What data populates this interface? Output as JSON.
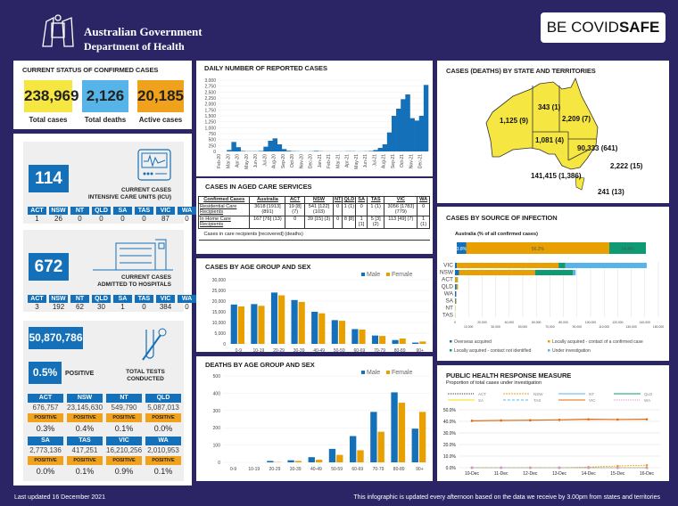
{
  "header": {
    "gov_line1": "Australian Government",
    "gov_line2": "Department of Health",
    "campaign_be": "BE ",
    "campaign_covid": "COVID",
    "campaign_safe": "SAFE"
  },
  "status": {
    "title": "CURRENT STATUS OF CONFIRMED CASES",
    "total_cases": "238,969",
    "total_cases_label": "Total cases",
    "total_deaths": "2,126",
    "total_deaths_label": "Total deaths",
    "active_cases": "20,185",
    "active_cases_label": "Active cases"
  },
  "icu": {
    "value": "114",
    "caption1": "CURRENT CASES",
    "caption2": "INTENSIVE CARE UNITS (ICU)",
    "states": [
      {
        "s": "ACT",
        "v": "1"
      },
      {
        "s": "NSW",
        "v": "26"
      },
      {
        "s": "NT",
        "v": "0"
      },
      {
        "s": "QLD",
        "v": "0"
      },
      {
        "s": "SA",
        "v": "0"
      },
      {
        "s": "TAS",
        "v": "0"
      },
      {
        "s": "VIC",
        "v": "87"
      },
      {
        "s": "WA",
        "v": "0"
      }
    ]
  },
  "hospital": {
    "value": "672",
    "caption1": "CURRENT CASES",
    "caption2": "ADMITTED TO HOSPITALS",
    "states": [
      {
        "s": "ACT",
        "v": "3"
      },
      {
        "s": "NSW",
        "v": "192"
      },
      {
        "s": "NT",
        "v": "62"
      },
      {
        "s": "QLD",
        "v": "30"
      },
      {
        "s": "SA",
        "v": "1"
      },
      {
        "s": "TAS",
        "v": "0"
      },
      {
        "s": "VIC",
        "v": "384"
      },
      {
        "s": "WA",
        "v": "0"
      }
    ]
  },
  "tests": {
    "value": "50,870,786",
    "positive_pct": "0.5%",
    "positive_label": "POSITIVE",
    "caption1": "TOTAL TESTS",
    "caption2": "CONDUCTED",
    "pos_label": "POSITIVE",
    "states": [
      {
        "s": "ACT",
        "v": "676,757",
        "p": "0.3%"
      },
      {
        "s": "NSW",
        "v": "23,145,630",
        "p": "0.4%"
      },
      {
        "s": "NT",
        "v": "549,790",
        "p": "0.1%"
      },
      {
        "s": "QLD",
        "v": "5,087,013",
        "p": "0.0%"
      },
      {
        "s": "SA",
        "v": "2,773,136",
        "p": "0.0%"
      },
      {
        "s": "TAS",
        "v": "417,251",
        "p": "0.1%"
      },
      {
        "s": "VIC",
        "v": "16,210,256",
        "p": "0.9%"
      },
      {
        "s": "WA",
        "v": "2,010,953",
        "p": "0.1%"
      }
    ]
  },
  "aged_care": {
    "title": "CASES IN AGED CARE SERVICES",
    "headers": [
      "Confirmed Cases",
      "Australia",
      "ACT",
      "NSW",
      "NT",
      "QLD",
      "SA",
      "TAS",
      "VIC",
      "WA"
    ],
    "rows": [
      [
        "Residential Care Recipients",
        "3618 [1913] (891)",
        "19 [8] (7)",
        "541 [122] (103)",
        "0",
        "1 (1)",
        "0",
        "1 (1)",
        "3056 [1783] (779)",
        "0"
      ],
      [
        "In Home Care Recipients",
        "167 [76] (13)",
        "0",
        "39 [15] (3)",
        "0",
        "8 [8]",
        "1 [1]",
        "5 [3] (2)",
        "113 [49] (7)",
        "1 (1)"
      ]
    ],
    "note": "Cases in care recipients [recovered] (deaths)"
  },
  "map": {
    "title": "CASES (DEATHS) BY STATE AND TERRITORIES",
    "WA": "1,125 (9)",
    "NT": "343 (1)",
    "QLD": "2,209 (7)",
    "SA": "1,081 (4)",
    "NSW": "90,333 (641)",
    "VIC": "141,415 (1,386)",
    "ACT": "2,222 (15)",
    "TAS": "241 (13)"
  },
  "colors": {
    "blue": "#1470b8",
    "orange": "#e8a000",
    "green": "#0e9b73",
    "light_blue": "#56b4e9",
    "yellow": "#f5e642",
    "navy": "#2b2566"
  },
  "footer": {
    "updated": "Last updated 16 December 2021",
    "note": "This infographic is updated every afternoon based on the data we receive by 3.00pm from states and territories"
  },
  "chart_data": [
    {
      "id": "daily",
      "type": "bar",
      "title": "DAILY NUMBER OF REPORTED CASES",
      "ylim": [
        0,
        3000
      ],
      "yticks": [
        "0",
        "250",
        "500",
        "750",
        "1,000",
        "1,250",
        "1,500",
        "1,750",
        "2,000",
        "2,250",
        "2,500",
        "2,750",
        "3,000"
      ],
      "months": [
        "Feb-20",
        "Mar-20",
        "Apr-20",
        "May-20",
        "Jun-20",
        "Jul-20",
        "Aug-20",
        "Sep-20",
        "Oct-20",
        "Nov-20",
        "Dec-20",
        "Jan-21",
        "Feb-21",
        "Mar-21",
        "Apr-21",
        "May-21",
        "Jun-21",
        "Jul-21",
        "Aug-21",
        "Sep-21",
        "Oct-21",
        "Nov-21",
        "Dec-21"
      ],
      "values": [
        0,
        0,
        60,
        400,
        180,
        20,
        10,
        10,
        10,
        20,
        200,
        450,
        550,
        300,
        100,
        30,
        15,
        10,
        5,
        5,
        10,
        25,
        10,
        5,
        5,
        5,
        5,
        5,
        10,
        10,
        5,
        5,
        10,
        20,
        60,
        150,
        300,
        800,
        1500,
        1800,
        2200,
        2400,
        1400,
        1300,
        1500,
        2800
      ]
    },
    {
      "id": "age_cases",
      "type": "bar",
      "title": "CASES BY AGE GROUP AND SEX",
      "ylim": [
        0,
        30000
      ],
      "yticks": [
        "0",
        "5,000",
        "10,000",
        "15,000",
        "20,000",
        "25,000",
        "30,000"
      ],
      "categories": [
        "0-9",
        "10-19",
        "20-29",
        "30-39",
        "40-49",
        "50-59",
        "60-69",
        "70-79",
        "80-89",
        "90+"
      ],
      "series": [
        {
          "name": "Male",
          "values": [
            18400,
            18600,
            24000,
            20500,
            15000,
            11100,
            6900,
            3900,
            1800,
            600
          ]
        },
        {
          "name": "Female",
          "values": [
            17500,
            17800,
            22700,
            19600,
            14300,
            10800,
            6700,
            3700,
            2500,
            1100
          ]
        }
      ]
    },
    {
      "id": "age_deaths",
      "type": "bar",
      "title": "DEATHS BY AGE GROUP AND SEX",
      "ylim": [
        0,
        500
      ],
      "yticks": [
        "0",
        "100",
        "200",
        "300",
        "400",
        "500"
      ],
      "categories": [
        "0-9",
        "10-19",
        "20-29",
        "30-39",
        "40-49",
        "50-59",
        "60-69",
        "70-79",
        "80-89",
        "90+"
      ],
      "series": [
        {
          "name": "Male",
          "values": [
            0,
            0,
            8,
            12,
            30,
            78,
            152,
            292,
            405,
            195
          ]
        },
        {
          "name": "Female",
          "values": [
            0,
            0,
            2,
            8,
            15,
            43,
            70,
            177,
            345,
            292
          ]
        }
      ]
    },
    {
      "id": "source",
      "type": "bar",
      "title": "CASES BY SOURCE OF INFECTION",
      "subtitle": "Australia (% of all confirmed cases)",
      "australia_pct": [
        {
          "label": "3.8%",
          "value": 3.8
        },
        {
          "label": "56.2%",
          "value": 56.2
        },
        {
          "label": "14.4%",
          "value": 14.4
        }
      ],
      "categories": [
        "VIC",
        "NSW",
        "ACT",
        "QLD",
        "WA",
        "SA",
        "NT",
        "TAS"
      ],
      "xlim": [
        0,
        150000
      ],
      "xticks": [
        "0",
        "10,000",
        "20,000",
        "30,000",
        "40,000",
        "50,000",
        "60,000",
        "70,000",
        "80,000",
        "90,000",
        "100,000",
        "110,000",
        "120,000",
        "130,000",
        "140,000",
        "150,000"
      ],
      "series": [
        {
          "name": "Overseas acquired",
          "values": [
            1400,
            3000,
            200,
            1000,
            900,
            500,
            100,
            50
          ]
        },
        {
          "name": "Locally acquired - contact of a confirmed case",
          "values": [
            75000,
            56000,
            1700,
            1000,
            100,
            500,
            200,
            150
          ]
        },
        {
          "name": "Locally acquired - contact not identified",
          "values": [
            5000,
            28000,
            200,
            100,
            0,
            50,
            0,
            0
          ]
        },
        {
          "name": "Under investigation",
          "values": [
            60000,
            2000,
            100,
            100,
            100,
            30,
            0,
            0
          ]
        }
      ]
    },
    {
      "id": "phrm",
      "type": "line",
      "title": "PUBLIC HEALTH RESPONSE MEASURE",
      "subtitle": "Proportion of total cases under investigation",
      "ylim": [
        0,
        50
      ],
      "yticks": [
        "0.0%",
        "10.0%",
        "20.0%",
        "30.0%",
        "40.0%",
        "50.0%"
      ],
      "x": [
        "10-Dec",
        "11-Dec",
        "12-Dec",
        "13-Dec",
        "14-Dec",
        "15-Dec",
        "16-Dec"
      ],
      "series": [
        {
          "name": "ACT",
          "values": [
            0,
            0,
            0,
            0,
            0,
            0,
            0
          ]
        },
        {
          "name": "NSW",
          "values": [
            0,
            0,
            0,
            0,
            0.5,
            1.5,
            2.2
          ]
        },
        {
          "name": "NT",
          "values": [
            0,
            0,
            0,
            0,
            0,
            0,
            0
          ]
        },
        {
          "name": "QLD",
          "values": [
            0,
            0,
            0,
            0,
            0,
            0,
            0
          ]
        },
        {
          "name": "SA",
          "values": [
            0,
            0,
            0,
            0,
            0,
            0,
            0
          ]
        },
        {
          "name": "TAS",
          "values": [
            0,
            0,
            0,
            0,
            0,
            0,
            0
          ]
        },
        {
          "name": "VIC",
          "values": [
            40.5,
            40.8,
            41,
            41.3,
            41.8,
            41.6,
            41.8
          ]
        },
        {
          "name": "WA",
          "values": [
            0,
            0,
            0,
            0,
            0,
            0,
            0
          ]
        }
      ]
    }
  ]
}
